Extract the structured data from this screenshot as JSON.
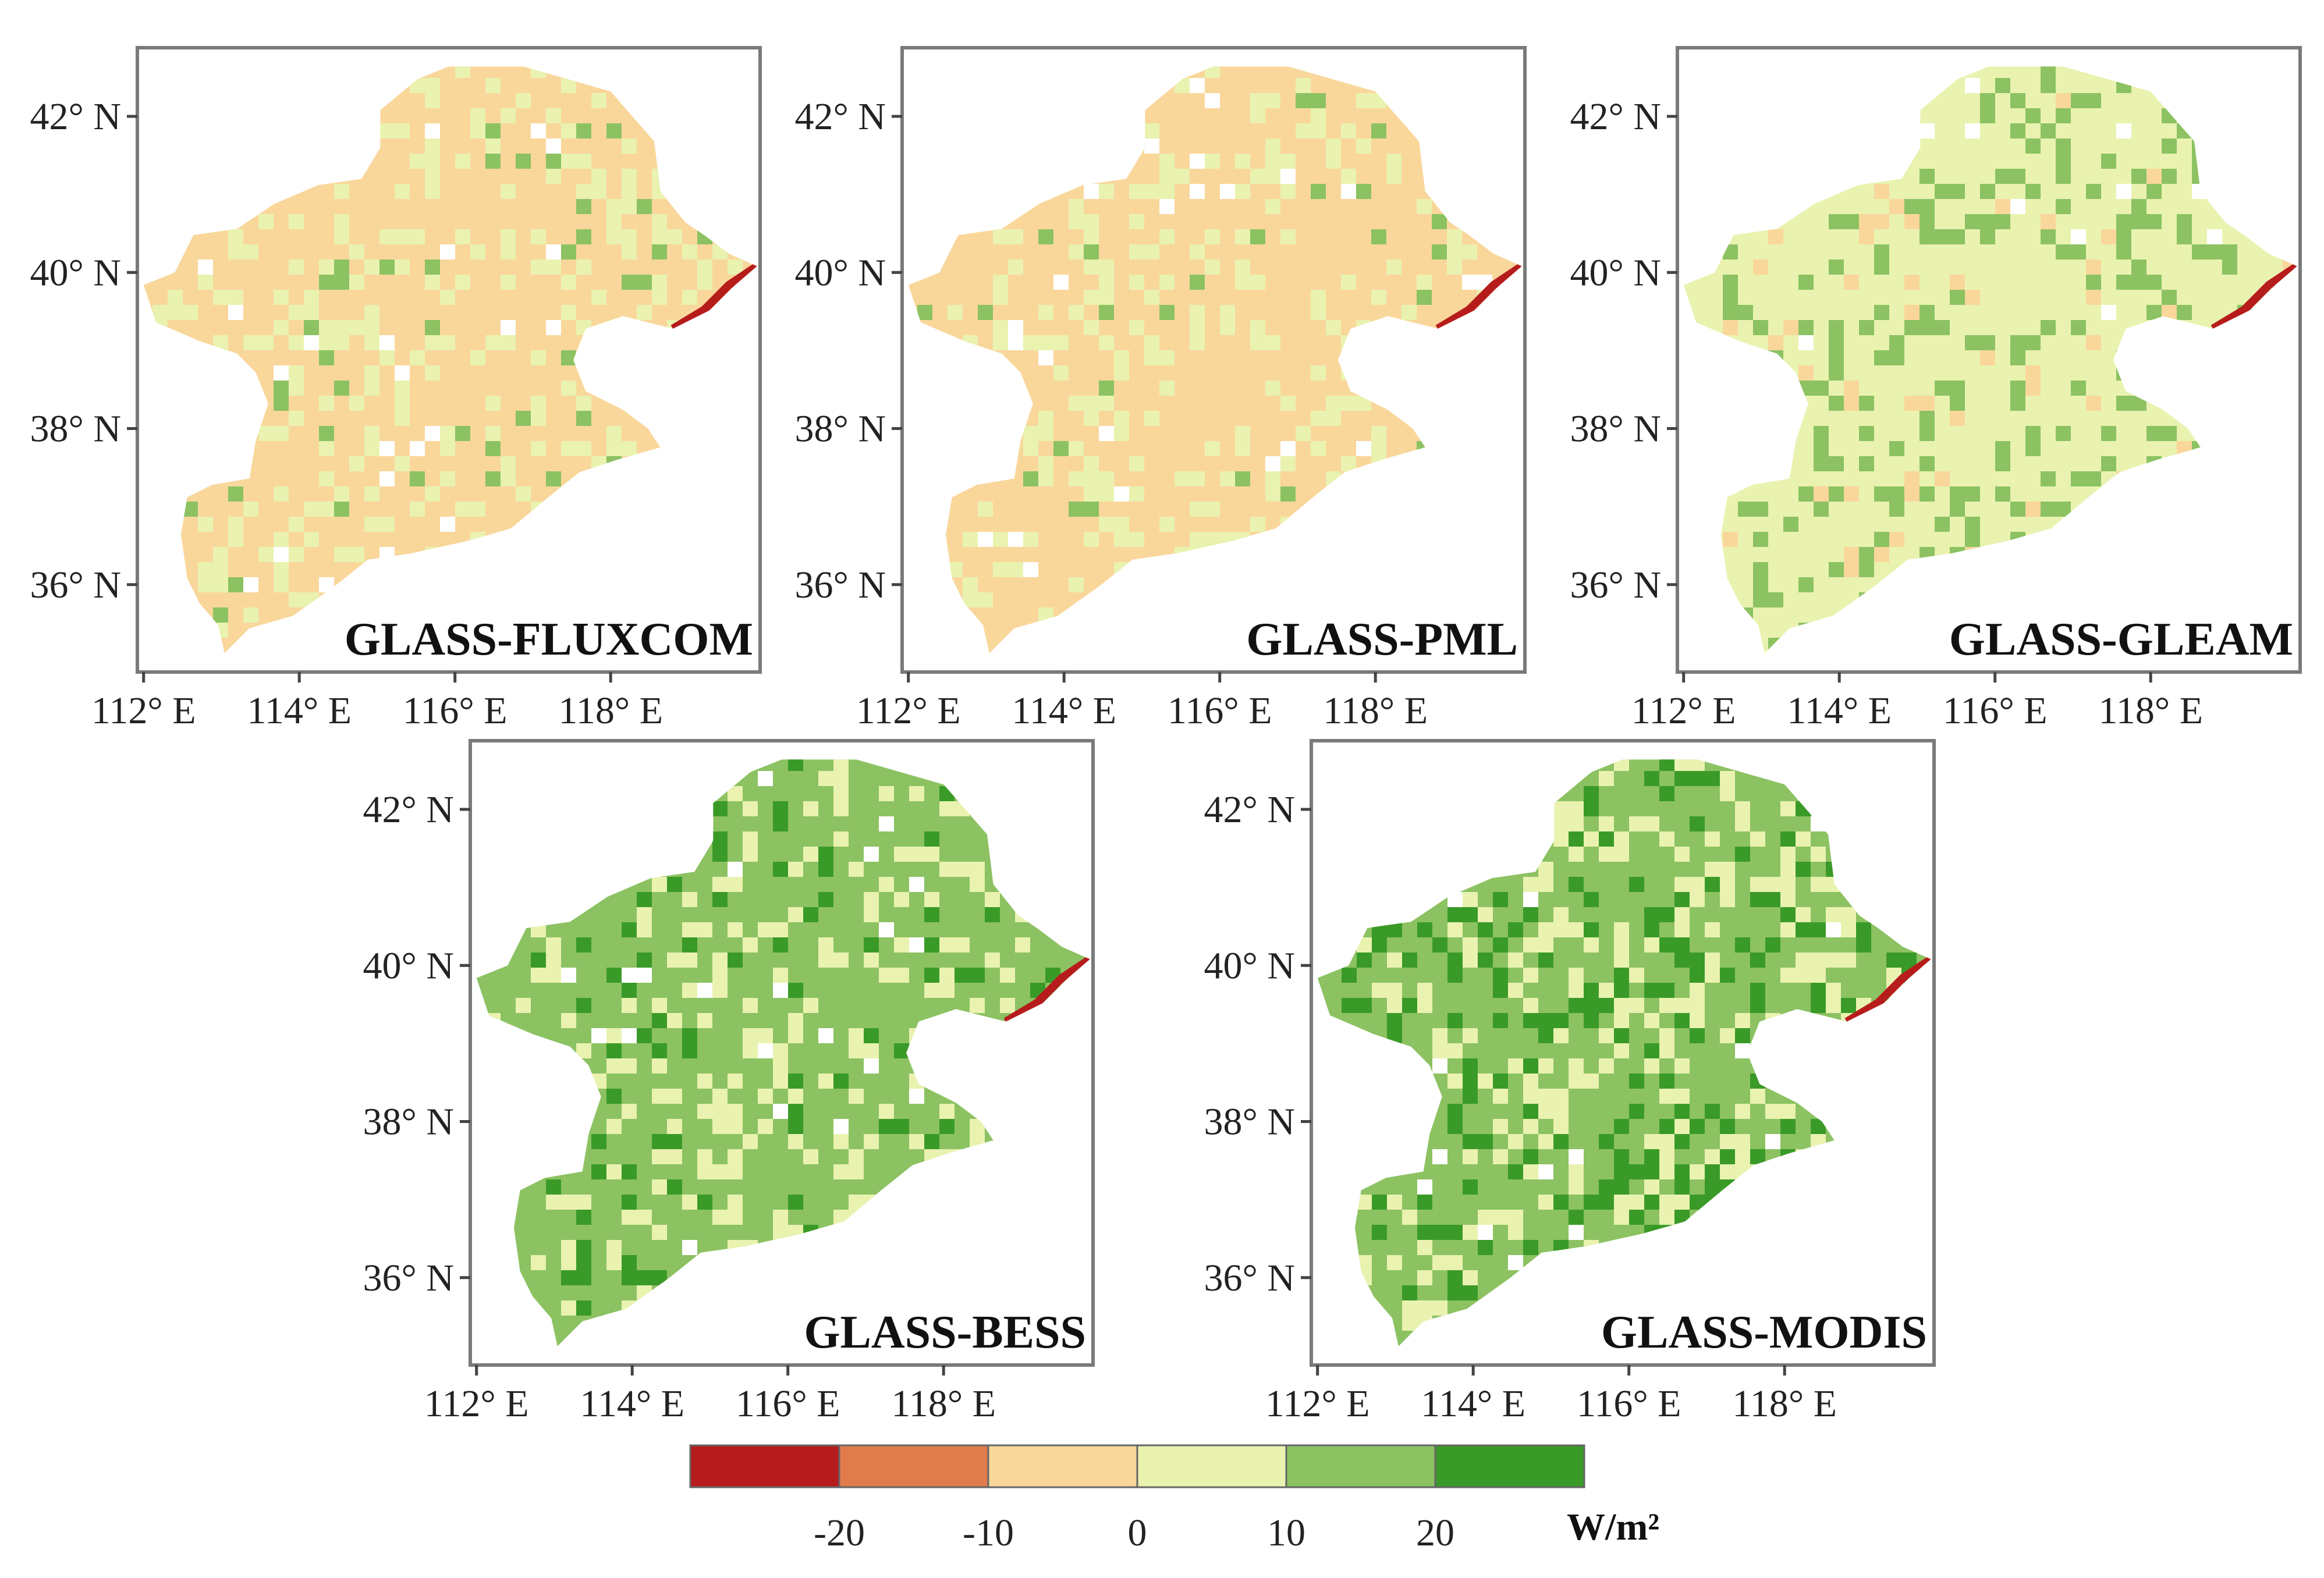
{
  "figure": {
    "x_ticks": [
      "112° E",
      "114° E",
      "116° E",
      "118° E"
    ],
    "y_ticks": [
      "42° N",
      "40° N",
      "38° N",
      "36° N"
    ],
    "panels": [
      {
        "title": "GLASS-FLUXCOM",
        "dominant_class": 2,
        "secondary_class": 3,
        "noise_class": 4,
        "noise_share": 0.05
      },
      {
        "title": "GLASS-PML",
        "dominant_class": 2,
        "secondary_class": 3,
        "noise_class": 4,
        "noise_share": 0.04
      },
      {
        "title": "GLASS-GLEAM",
        "dominant_class": 3,
        "secondary_class": 4,
        "noise_class": 2,
        "noise_share": 0.06
      },
      {
        "title": "GLASS-BESS",
        "dominant_class": 4,
        "secondary_class": 3,
        "noise_class": 5,
        "noise_share": 0.08
      },
      {
        "title": "GLASS-MODIS",
        "dominant_class": 4,
        "secondary_class": 3,
        "noise_class": 5,
        "noise_share": 0.2
      }
    ],
    "legend": {
      "unit": "W/m²",
      "labels": [
        "-20",
        "-10",
        "0",
        "10",
        "20"
      ],
      "colors": [
        "#b71c1c",
        "#e07b4c",
        "#f9d79b",
        "#eaf2b0",
        "#8cc262",
        "#3a9a28"
      ]
    }
  }
}
